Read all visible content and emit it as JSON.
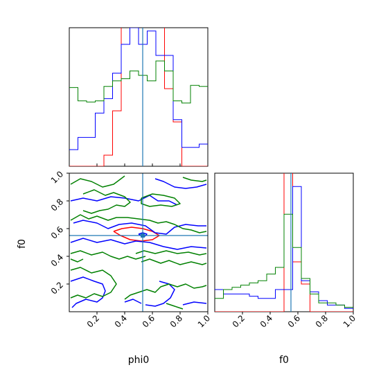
{
  "colors": {
    "red": "#ff0000",
    "blue": "#0000ff",
    "green": "#008000",
    "truth": "#1f77b4",
    "axis": "#000000",
    "background": "#ffffff"
  },
  "labels": {
    "x_bottom_left": "phi0",
    "x_bottom_right": "f0",
    "y_left": "f0"
  },
  "chart_data": [
    {
      "type": "histogram",
      "panel": "phi0 marginal (top-left)",
      "xlim": [
        0.0,
        1.0
      ],
      "bin_edges": [
        0.0,
        0.0625,
        0.125,
        0.1875,
        0.25,
        0.3125,
        0.375,
        0.4375,
        0.5,
        0.5625,
        0.625,
        0.6875,
        0.75,
        0.8125,
        0.875,
        0.9375,
        1.0
      ],
      "series": [
        {
          "color": "red",
          "values": [
            0,
            0,
            0,
            0,
            0.1,
            0.5,
            2.6,
            2.6,
            1.8,
            1.9,
            1.4,
            0.7,
            0.4,
            0,
            0,
            0
          ]
        },
        {
          "color": "blue",
          "values": [
            0.15,
            0.26,
            0.26,
            0.48,
            0.61,
            0.84,
            1.1,
            1.25,
            1.1,
            1.22,
            1.0,
            1.0,
            0.42,
            0.17,
            0.17,
            0.2
          ]
        },
        {
          "color": "green",
          "values": [
            0.71,
            0.59,
            0.58,
            0.59,
            0.72,
            0.77,
            0.79,
            0.86,
            0.82,
            0.77,
            0.95,
            0.86,
            0.59,
            0.57,
            0.73,
            0.72
          ]
        }
      ],
      "truth_x": 0.53,
      "xticks": [
        0.2,
        0.4,
        0.6,
        0.8,
        1.0
      ]
    },
    {
      "type": "contour",
      "panel": "phi0 vs f0 (bottom-left)",
      "xlim": [
        0.0,
        1.0
      ],
      "ylim": [
        0.0,
        1.0
      ],
      "xlabel": "phi0",
      "ylabel": "f0",
      "truth": [
        0.53,
        0.55
      ],
      "xticks": [
        0.2,
        0.4,
        0.6,
        0.8,
        1.0
      ],
      "xtick_labels": [
        "0.2",
        "0.4",
        "0.6",
        "0.8",
        "1.0"
      ],
      "yticks": [
        0.2,
        0.4,
        0.6,
        0.8,
        1.0
      ],
      "ytick_labels": [
        "0.2",
        "0.4",
        "0.6",
        "0.8",
        "1.0"
      ],
      "series": [
        {
          "color": "red",
          "contours": [
            [
              [
                0.32,
                0.58
              ],
              [
                0.38,
                0.6
              ],
              [
                0.45,
                0.61
              ],
              [
                0.53,
                0.6
              ],
              [
                0.6,
                0.58
              ],
              [
                0.65,
                0.55
              ],
              [
                0.6,
                0.52
              ],
              [
                0.52,
                0.51
              ],
              [
                0.44,
                0.52
              ],
              [
                0.37,
                0.55
              ],
              [
                0.32,
                0.58
              ]
            ]
          ]
        },
        {
          "color": "blue",
          "contours": [
            [
              [
                0.5,
                0.56
              ],
              [
                0.53,
                0.57
              ],
              [
                0.56,
                0.56
              ],
              [
                0.54,
                0.54
              ],
              [
                0.5,
                0.56
              ]
            ],
            [
              [
                0.03,
                0.64
              ],
              [
                0.1,
                0.66
              ],
              [
                0.2,
                0.64
              ],
              [
                0.28,
                0.6
              ],
              [
                0.36,
                0.63
              ],
              [
                0.45,
                0.64
              ],
              [
                0.55,
                0.62
              ],
              [
                0.62,
                0.57
              ],
              [
                0.7,
                0.56
              ],
              [
                0.76,
                0.61
              ],
              [
                0.84,
                0.63
              ],
              [
                0.93,
                0.62
              ],
              [
                0.99,
                0.62
              ]
            ],
            [
              [
                0.01,
                0.5
              ],
              [
                0.1,
                0.53
              ],
              [
                0.2,
                0.5
              ],
              [
                0.3,
                0.52
              ],
              [
                0.4,
                0.49
              ],
              [
                0.48,
                0.51
              ],
              [
                0.58,
                0.5
              ],
              [
                0.68,
                0.47
              ],
              [
                0.78,
                0.45
              ],
              [
                0.88,
                0.47
              ],
              [
                0.99,
                0.46
              ]
            ],
            [
              [
                0.01,
                0.8
              ],
              [
                0.1,
                0.82
              ],
              [
                0.2,
                0.8
              ],
              [
                0.3,
                0.83
              ],
              [
                0.4,
                0.82
              ],
              [
                0.5,
                0.8
              ],
              [
                0.58,
                0.84
              ],
              [
                0.64,
                0.8
              ],
              [
                0.72,
                0.8
              ],
              [
                0.78,
                0.77
              ]
            ],
            [
              [
                0.62,
                0.96
              ],
              [
                0.68,
                0.94
              ],
              [
                0.76,
                0.9
              ],
              [
                0.84,
                0.89
              ],
              [
                0.92,
                0.9
              ],
              [
                0.99,
                0.92
              ]
            ],
            [
              [
                0.01,
                0.22
              ],
              [
                0.1,
                0.25
              ],
              [
                0.18,
                0.22
              ],
              [
                0.24,
                0.2
              ],
              [
                0.26,
                0.15
              ],
              [
                0.24,
                0.1
              ],
              [
                0.2,
                0.07
              ],
              [
                0.12,
                0.09
              ],
              [
                0.05,
                0.06
              ],
              [
                0.02,
                0.03
              ]
            ],
            [
              [
                0.65,
                0.22
              ],
              [
                0.72,
                0.2
              ],
              [
                0.76,
                0.16
              ],
              [
                0.73,
                0.1
              ],
              [
                0.68,
                0.06
              ],
              [
                0.62,
                0.04
              ],
              [
                0.55,
                0.05
              ]
            ],
            [
              [
                0.82,
                0.05
              ],
              [
                0.9,
                0.07
              ],
              [
                0.99,
                0.06
              ]
            ],
            [
              [
                0.4,
                0.07
              ],
              [
                0.46,
                0.09
              ],
              [
                0.52,
                0.06
              ]
            ]
          ]
        },
        {
          "color": "green",
          "contours": [
            [
              [
                0.01,
                0.92
              ],
              [
                0.08,
                0.96
              ],
              [
                0.16,
                0.94
              ],
              [
                0.24,
                0.9
              ],
              [
                0.32,
                0.92
              ],
              [
                0.4,
                0.98
              ]
            ],
            [
              [
                0.1,
                0.85
              ],
              [
                0.18,
                0.88
              ],
              [
                0.26,
                0.84
              ],
              [
                0.32,
                0.86
              ],
              [
                0.4,
                0.83
              ],
              [
                0.44,
                0.79
              ],
              [
                0.4,
                0.76
              ],
              [
                0.34,
                0.77
              ],
              [
                0.28,
                0.74
              ],
              [
                0.22,
                0.73
              ],
              [
                0.16,
                0.71
              ],
              [
                0.1,
                0.73
              ]
            ],
            [
              [
                0.52,
                0.82
              ],
              [
                0.6,
                0.85
              ],
              [
                0.68,
                0.84
              ],
              [
                0.76,
                0.82
              ],
              [
                0.8,
                0.78
              ],
              [
                0.74,
                0.76
              ],
              [
                0.66,
                0.77
              ],
              [
                0.58,
                0.76
              ],
              [
                0.52,
                0.78
              ],
              [
                0.52,
                0.82
              ]
            ],
            [
              [
                0.82,
                0.97
              ],
              [
                0.88,
                0.95
              ],
              [
                0.96,
                0.94
              ],
              [
                0.99,
                0.95
              ]
            ],
            [
              [
                0.01,
                0.66
              ],
              [
                0.08,
                0.7
              ],
              [
                0.14,
                0.67
              ],
              [
                0.2,
                0.69
              ],
              [
                0.28,
                0.66
              ],
              [
                0.34,
                0.68
              ],
              [
                0.42,
                0.68
              ],
              [
                0.5,
                0.67
              ],
              [
                0.58,
                0.66
              ],
              [
                0.64,
                0.64
              ],
              [
                0.7,
                0.65
              ],
              [
                0.76,
                0.63
              ],
              [
                0.82,
                0.6
              ],
              [
                0.88,
                0.59
              ],
              [
                0.94,
                0.57
              ],
              [
                0.99,
                0.58
              ]
            ],
            [
              [
                0.01,
                0.42
              ],
              [
                0.08,
                0.44
              ],
              [
                0.16,
                0.41
              ],
              [
                0.24,
                0.43
              ],
              [
                0.3,
                0.4
              ],
              [
                0.36,
                0.38
              ],
              [
                0.42,
                0.4
              ],
              [
                0.48,
                0.38
              ],
              [
                0.55,
                0.4
              ]
            ],
            [
              [
                0.48,
                0.42
              ],
              [
                0.54,
                0.44
              ],
              [
                0.62,
                0.42
              ],
              [
                0.7,
                0.44
              ],
              [
                0.78,
                0.42
              ],
              [
                0.86,
                0.43
              ],
              [
                0.94,
                0.41
              ],
              [
                0.99,
                0.42
              ]
            ],
            [
              [
                0.52,
                0.36
              ],
              [
                0.58,
                0.38
              ],
              [
                0.66,
                0.35
              ],
              [
                0.72,
                0.37
              ],
              [
                0.8,
                0.34
              ],
              [
                0.88,
                0.36
              ],
              [
                0.96,
                0.34
              ],
              [
                0.99,
                0.35
              ]
            ],
            [
              [
                0.01,
                0.3
              ],
              [
                0.08,
                0.32
              ],
              [
                0.16,
                0.28
              ],
              [
                0.24,
                0.3
              ],
              [
                0.3,
                0.26
              ],
              [
                0.34,
                0.2
              ],
              [
                0.3,
                0.14
              ],
              [
                0.24,
                0.11
              ],
              [
                0.18,
                0.13
              ],
              [
                0.12,
                0.1
              ],
              [
                0.06,
                0.12
              ],
              [
                0.01,
                0.1
              ]
            ],
            [
              [
                0.4,
                0.09
              ],
              [
                0.44,
                0.12
              ],
              [
                0.5,
                0.14
              ],
              [
                0.56,
                0.16
              ],
              [
                0.62,
                0.14
              ],
              [
                0.66,
                0.18
              ],
              [
                0.72,
                0.2
              ],
              [
                0.78,
                0.18
              ],
              [
                0.84,
                0.2
              ],
              [
                0.9,
                0.17
              ],
              [
                0.96,
                0.18
              ],
              [
                0.99,
                0.19
              ]
            ],
            [
              [
                0.7,
                0.06
              ],
              [
                0.76,
                0.04
              ],
              [
                0.82,
                0.02
              ]
            ],
            [
              [
                0.01,
                0.38
              ],
              [
                0.06,
                0.36
              ],
              [
                0.1,
                0.38
              ]
            ]
          ]
        }
      ]
    },
    {
      "type": "histogram",
      "panel": "f0 marginal (bottom-right)",
      "xlim": [
        0.0,
        1.0
      ],
      "xlabel": "f0",
      "bin_edges": [
        0.0,
        0.0625,
        0.125,
        0.1875,
        0.25,
        0.3125,
        0.375,
        0.4375,
        0.5,
        0.5625,
        0.625,
        0.6875,
        0.75,
        0.8125,
        0.875,
        0.9375,
        1.0
      ],
      "series": [
        {
          "color": "red",
          "values": [
            0,
            0,
            0,
            0,
            0,
            0,
            0,
            0,
            2.1,
            0.45,
            0.25,
            0,
            0,
            0,
            0,
            0
          ]
        },
        {
          "color": "blue",
          "values": [
            0.2,
            0.16,
            0.16,
            0.16,
            0.14,
            0.12,
            0.12,
            0.2,
            0.2,
            1.13,
            0.28,
            0.18,
            0.1,
            0.06,
            0.06,
            0.03
          ]
        },
        {
          "color": "green",
          "values": [
            0.12,
            0.2,
            0.22,
            0.24,
            0.26,
            0.28,
            0.34,
            0.4,
            0.88,
            0.58,
            0.3,
            0.16,
            0.08,
            0.08,
            0.06,
            0.04
          ]
        }
      ],
      "truth_x": 0.55,
      "xticks": [
        0.2,
        0.4,
        0.6,
        0.8,
        1.0
      ],
      "xtick_labels": [
        "0.2",
        "0.4",
        "0.6",
        "0.8",
        "1.0"
      ]
    }
  ]
}
